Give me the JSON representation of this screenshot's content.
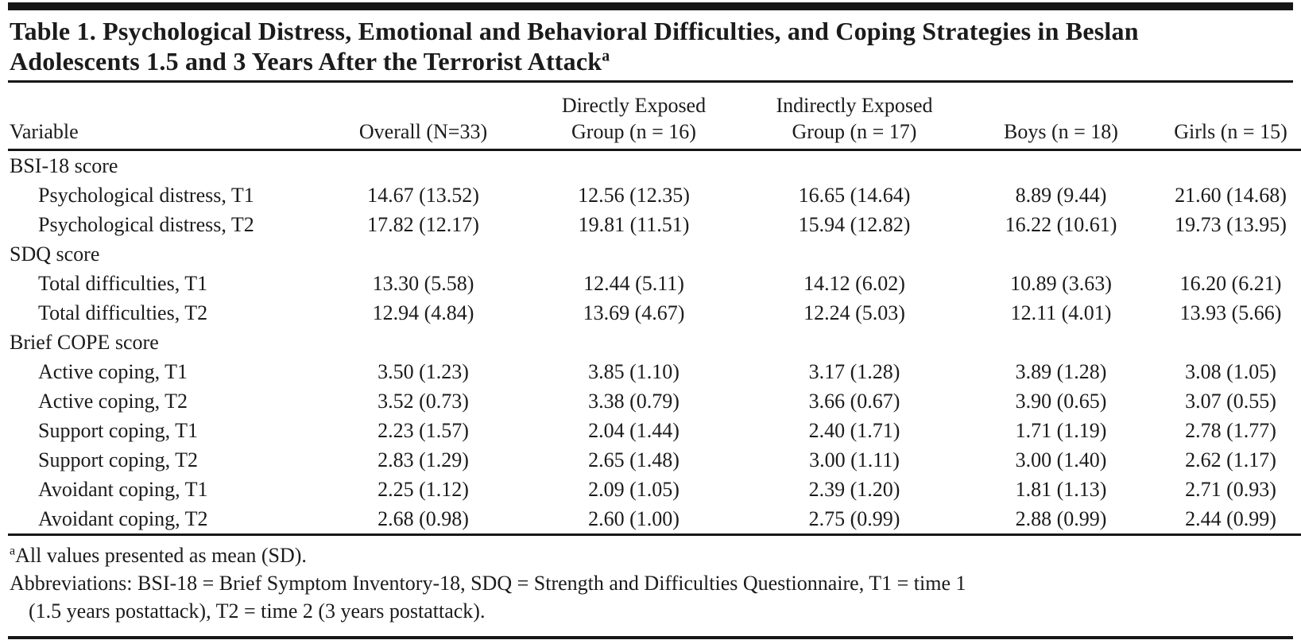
{
  "title": {
    "line1": "Table 1. Psychological Distress, Emotional and Behavioral Difficulties, and Coping Strategies in Beslan",
    "line2": "Adolescents 1.5 and 3 Years After the Terrorist Attack",
    "footnote_marker": "a"
  },
  "table": {
    "columns": [
      "Variable",
      "Overall (N=33)",
      "Directly Exposed\nGroup (n = 16)",
      "Indirectly Exposed\nGroup (n = 17)",
      "Boys (n = 18)",
      "Girls (n = 15)"
    ],
    "sections": [
      {
        "label": "BSI-18 score",
        "rows": [
          {
            "label": "Psychological distress, T1",
            "values": [
              "14.67 (13.52)",
              "12.56 (12.35)",
              "16.65 (14.64)",
              "8.89 (9.44)",
              "21.60 (14.68)"
            ]
          },
          {
            "label": "Psychological distress, T2",
            "values": [
              "17.82 (12.17)",
              "19.81 (11.51)",
              "15.94 (12.82)",
              "16.22 (10.61)",
              "19.73 (13.95)"
            ]
          }
        ]
      },
      {
        "label": "SDQ score",
        "rows": [
          {
            "label": "Total difficulties, T1",
            "values": [
              "13.30 (5.58)",
              "12.44 (5.11)",
              "14.12 (6.02)",
              "10.89 (3.63)",
              "16.20 (6.21)"
            ]
          },
          {
            "label": "Total difficulties, T2",
            "values": [
              "12.94 (4.84)",
              "13.69 (4.67)",
              "12.24 (5.03)",
              "12.11 (4.01)",
              "13.93 (5.66)"
            ]
          }
        ]
      },
      {
        "label": "Brief COPE score",
        "rows": [
          {
            "label": "Active coping, T1",
            "values": [
              "3.50 (1.23)",
              "3.85 (1.10)",
              "3.17 (1.28)",
              "3.89 (1.28)",
              "3.08 (1.05)"
            ]
          },
          {
            "label": "Active coping, T2",
            "values": [
              "3.52 (0.73)",
              "3.38 (0.79)",
              "3.66 (0.67)",
              "3.90 (0.65)",
              "3.07 (0.55)"
            ]
          },
          {
            "label": "Support coping, T1",
            "values": [
              "2.23 (1.57)",
              "2.04 (1.44)",
              "2.40 (1.71)",
              "1.71 (1.19)",
              "2.78 (1.77)"
            ]
          },
          {
            "label": "Support coping, T2",
            "values": [
              "2.83 (1.29)",
              "2.65 (1.48)",
              "3.00 (1.11)",
              "3.00 (1.40)",
              "2.62 (1.17)"
            ]
          },
          {
            "label": "Avoidant coping, T1",
            "values": [
              "2.25 (1.12)",
              "2.09 (1.05)",
              "2.39 (1.20)",
              "1.81 (1.13)",
              "2.71 (0.93)"
            ]
          },
          {
            "label": "Avoidant coping, T2",
            "values": [
              "2.68 (0.98)",
              "2.60 (1.00)",
              "2.75 (0.99)",
              "2.88 (0.99)",
              "2.44 (0.99)"
            ]
          }
        ]
      }
    ]
  },
  "footnotes": {
    "marker": "a",
    "note_a": "All values presented as mean (SD).",
    "abbreviations_line1": "Abbreviations: BSI-18 = Brief Symptom Inventory-18, SDQ = Strength and Difficulties Questionnaire, T1 = time 1",
    "abbreviations_line2": "(1.5 years postattack), T2 = time 2 (3 years postattack)."
  }
}
